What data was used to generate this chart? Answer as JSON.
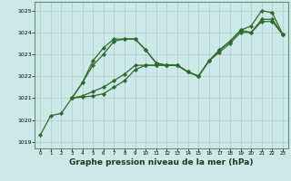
{
  "bg_color": "#cce8e8",
  "grid_color": "#aacccc",
  "line_color": "#2d6a2d",
  "marker_color": "#2d6a2d",
  "xlabel": "Graphe pression niveau de la mer (hPa)",
  "xlabel_fontsize": 6.5,
  "ylim": [
    1018.7,
    1025.4
  ],
  "xlim": [
    -0.5,
    23.5
  ],
  "yticks": [
    1019,
    1020,
    1021,
    1022,
    1023,
    1024,
    1025
  ],
  "xticks": [
    0,
    1,
    2,
    3,
    4,
    5,
    6,
    7,
    8,
    9,
    10,
    11,
    12,
    13,
    14,
    15,
    16,
    17,
    18,
    19,
    20,
    21,
    22,
    23
  ],
  "series": [
    [
      1019.3,
      1020.2,
      1020.3,
      1021.0,
      1021.7,
      1022.5,
      1023.0,
      1023.6,
      1023.7,
      1023.7,
      1023.2,
      1022.6,
      1022.5,
      1022.5,
      1022.2,
      1022.0,
      1022.7,
      1023.2,
      1023.6,
      1024.1,
      1024.3,
      1025.0,
      1024.9,
      1023.9
    ],
    [
      null,
      null,
      null,
      1021.0,
      1021.7,
      1022.7,
      1023.3,
      1023.7,
      1023.7,
      1023.7,
      1023.2,
      1022.6,
      1022.5,
      1022.5,
      1022.2,
      1022.0,
      null,
      null,
      null,
      null,
      null,
      null,
      null,
      null
    ],
    [
      null,
      null,
      null,
      1021.0,
      1021.1,
      1021.3,
      1021.5,
      1021.8,
      1022.1,
      1022.5,
      1022.5,
      1022.5,
      1022.5,
      1022.5,
      1022.2,
      1022.0,
      1022.7,
      1023.2,
      1023.6,
      1024.1,
      1024.0,
      1024.6,
      1024.6,
      1023.9
    ],
    [
      null,
      null,
      null,
      1021.0,
      1021.05,
      1021.1,
      1021.2,
      1021.5,
      1021.8,
      1022.3,
      1022.5,
      1022.5,
      1022.5,
      1022.5,
      1022.2,
      1022.0,
      1022.7,
      1023.1,
      1023.5,
      1024.0,
      1024.0,
      1024.5,
      1024.5,
      1023.9
    ]
  ]
}
